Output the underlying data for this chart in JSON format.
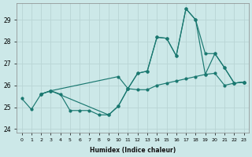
{
  "xlabel": "Humidex (Indice chaleur)",
  "bg_color": "#cce8e8",
  "grid_color": "#b8d4d4",
  "line_color": "#1a7870",
  "xlim": [
    -0.5,
    23.5
  ],
  "ylim": [
    23.85,
    29.75
  ],
  "yticks": [
    24,
    25,
    26,
    27,
    28,
    29
  ],
  "xticks": [
    0,
    1,
    2,
    3,
    4,
    5,
    6,
    7,
    8,
    9,
    10,
    11,
    12,
    13,
    14,
    15,
    16,
    17,
    18,
    19,
    20,
    21,
    22,
    23
  ],
  "series1_x": [
    0,
    1,
    2,
    3,
    4,
    5,
    6,
    7,
    8,
    9,
    10,
    11,
    12,
    13,
    14,
    15,
    16,
    17,
    18,
    19,
    20,
    21,
    22,
    23
  ],
  "series1_y": [
    25.4,
    24.9,
    25.6,
    25.75,
    25.6,
    24.85,
    24.85,
    24.85,
    24.65,
    24.65,
    25.05,
    25.85,
    25.8,
    25.8,
    26.0,
    26.1,
    26.2,
    26.3,
    26.4,
    26.5,
    26.55,
    26.0,
    26.1,
    26.15
  ],
  "series2_x": [
    2,
    3,
    10,
    11,
    12,
    13,
    14,
    15,
    16,
    17,
    18,
    19,
    20,
    21,
    22,
    23
  ],
  "series2_y": [
    25.6,
    25.75,
    26.4,
    25.85,
    26.55,
    26.65,
    28.2,
    28.15,
    27.35,
    29.5,
    29.0,
    26.5,
    27.45,
    26.8,
    26.1,
    26.15
  ],
  "series3_x": [
    2,
    3,
    9,
    10,
    11,
    12,
    13,
    14,
    15,
    16,
    17,
    18,
    19,
    20,
    21,
    22,
    23
  ],
  "series3_y": [
    25.6,
    25.75,
    24.65,
    25.05,
    25.85,
    26.55,
    26.65,
    28.2,
    28.15,
    27.35,
    29.5,
    29.0,
    27.45,
    27.45,
    26.8,
    26.1,
    26.15
  ]
}
